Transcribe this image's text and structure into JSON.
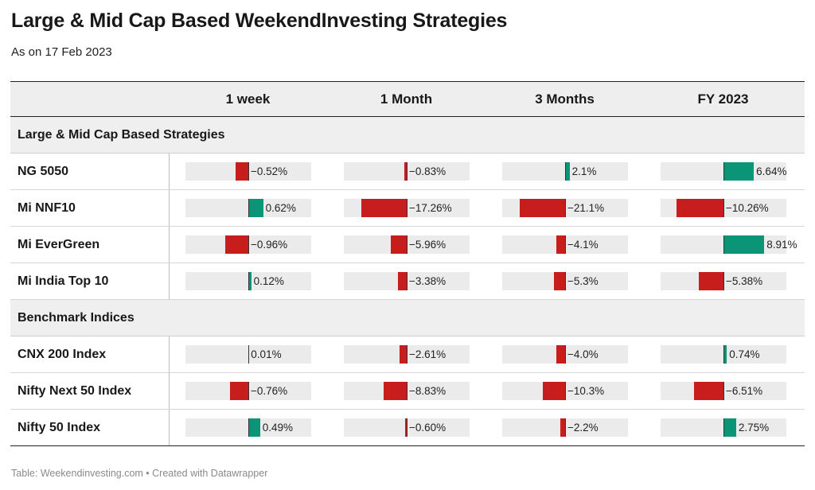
{
  "title": "Large & Mid Cap Based WeekendInvesting Strategies",
  "subtitle": "As on 17 Feb 2023",
  "footer": "Table: Weekendinvesting.com • Created with Datawrapper",
  "colors": {
    "positive": "#0b9577",
    "negative": "#c71e1d",
    "track": "#ebebeb"
  },
  "columns": [
    "1 week",
    "1 Month",
    "3 Months",
    "FY 2023"
  ],
  "groups": [
    {
      "name": "Large & Mid Cap Based Strategies",
      "rows": [
        {
          "name": "NG 5050",
          "values": [
            -0.52,
            -0.83,
            2.1,
            6.64
          ],
          "labels": [
            "−0.52%",
            "−0.83%",
            "2.1%",
            "6.64%"
          ]
        },
        {
          "name": "Mi NNF10",
          "values": [
            0.62,
            -17.26,
            -21.1,
            -10.26
          ],
          "labels": [
            "0.62%",
            "−17.26%",
            "−21.1%",
            "−10.26%"
          ]
        },
        {
          "name": "Mi EverGreen",
          "values": [
            -0.96,
            -5.96,
            -4.1,
            8.91
          ],
          "labels": [
            "−0.96%",
            "−5.96%",
            "−4.1%",
            "8.91%"
          ]
        },
        {
          "name": "Mi India Top 10",
          "values": [
            0.12,
            -3.38,
            -5.3,
            -5.38
          ],
          "labels": [
            "0.12%",
            "−3.38%",
            "−5.3%",
            "−5.38%"
          ]
        }
      ]
    },
    {
      "name": "Benchmark Indices",
      "rows": [
        {
          "name": "CNX 200 Index",
          "values": [
            0.01,
            -2.61,
            -4.0,
            0.74
          ],
          "labels": [
            "0.01%",
            "−2.61%",
            "−4.0%",
            "0.74%"
          ]
        },
        {
          "name": "Nifty Next 50 Index",
          "values": [
            -0.76,
            -8.83,
            -10.3,
            -6.51
          ],
          "labels": [
            "−0.76%",
            "−8.83%",
            "−10.3%",
            "−6.51%"
          ]
        },
        {
          "name": "Nifty 50 Index",
          "values": [
            0.49,
            -0.6,
            -2.2,
            2.75
          ],
          "labels": [
            "0.49%",
            "−0.60%",
            "−2.2%",
            "2.75%"
          ]
        }
      ]
    }
  ],
  "chart_data": {
    "type": "table",
    "categories": [
      "1 week",
      "1 Month",
      "3 Months",
      "FY 2023"
    ],
    "series": [
      {
        "name": "NG 5050",
        "values": [
          -0.52,
          -0.83,
          2.1,
          6.64
        ]
      },
      {
        "name": "Mi NNF10",
        "values": [
          0.62,
          -17.26,
          -21.1,
          -10.26
        ]
      },
      {
        "name": "Mi EverGreen",
        "values": [
          -0.96,
          -5.96,
          -4.1,
          8.91
        ]
      },
      {
        "name": "Mi India Top 10",
        "values": [
          0.12,
          -3.38,
          -5.3,
          -5.38
        ]
      },
      {
        "name": "CNX 200 Index",
        "values": [
          0.01,
          -2.61,
          -4.0,
          0.74
        ]
      },
      {
        "name": "Nifty Next 50 Index",
        "values": [
          -0.76,
          -8.83,
          -10.3,
          -6.51
        ]
      },
      {
        "name": "Nifty 50 Index",
        "values": [
          0.49,
          -0.6,
          -2.2,
          2.75
        ]
      }
    ]
  }
}
